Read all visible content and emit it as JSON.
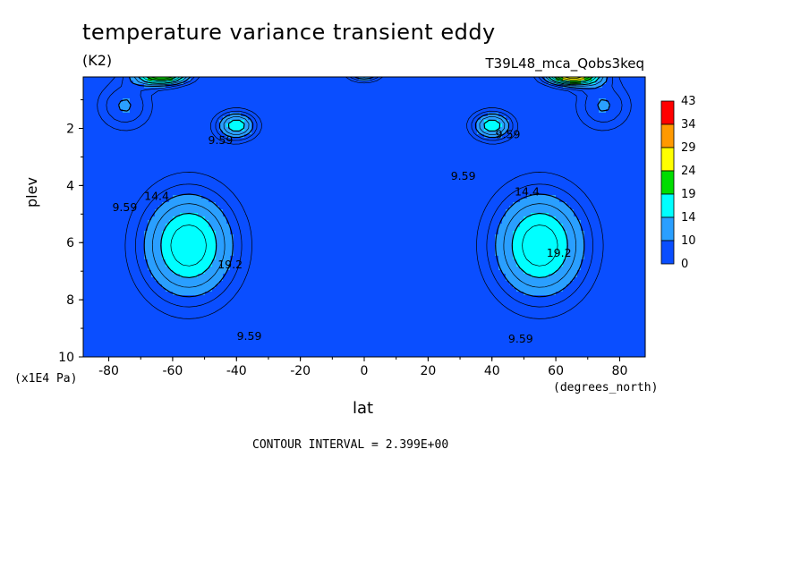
{
  "chart_data": {
    "type": "heatmap",
    "title": "temperature variance transient eddy",
    "units": "(K2)",
    "run_label": "T39L48_mca_Qobs3keq",
    "xlabel": "lat",
    "x_units": "(degrees_north)",
    "ylabel": "plev",
    "y_units": "(x1E4 Pa)",
    "footer": "CONTOUR INTERVAL = 2.399E+00",
    "xlim": [
      -88,
      88
    ],
    "ylim": [
      10,
      0.2
    ],
    "x_ticks": [
      "-80",
      "-60",
      "-40",
      "-20",
      "0",
      "20",
      "40",
      "60",
      "80"
    ],
    "x_tick_values": [
      -80,
      -60,
      -40,
      -20,
      0,
      20,
      40,
      60,
      80
    ],
    "y_ticks": [
      "2",
      "4",
      "6",
      "8",
      "10"
    ],
    "y_tick_values": [
      2,
      4,
      6,
      8,
      10
    ],
    "contour_labels": [
      {
        "text": "9.59",
        "lat": -45,
        "plev": 2.55
      },
      {
        "text": "9.59",
        "lat": -75,
        "plev": 4.9
      },
      {
        "text": "14.4",
        "lat": -65,
        "plev": 4.5
      },
      {
        "text": "19.2",
        "lat": -42,
        "plev": 6.9
      },
      {
        "text": "9.59",
        "lat": -36,
        "plev": 9.4
      },
      {
        "text": "9.59",
        "lat": 45,
        "plev": 2.35
      },
      {
        "text": "9.59",
        "lat": 31,
        "plev": 3.8
      },
      {
        "text": "14.4",
        "lat": 51,
        "plev": 4.35
      },
      {
        "text": "19.2",
        "lat": 61,
        "plev": 6.5
      },
      {
        "text": "9.59",
        "lat": 49,
        "plev": 9.5
      }
    ],
    "colorbar": {
      "labels": [
        "43",
        "34",
        "29",
        "24",
        "19",
        "14",
        "10",
        "0"
      ],
      "colors": [
        "#ff0000",
        "#ff9900",
        "#ffff00",
        "#00dd00",
        "#00ffff",
        "#2a9fff",
        "#0a4eff"
      ]
    },
    "field": {
      "background": 0,
      "features": [
        {
          "lat": -55,
          "plev": 6.1,
          "amp": 18.7,
          "slat": 17,
          "splev": 2.2
        },
        {
          "lat": 55,
          "plev": 6.1,
          "amp": 18.7,
          "slat": 17,
          "splev": 2.2
        },
        {
          "lat": -40,
          "plev": 1.9,
          "amp": 16.5,
          "slat": 7,
          "splev": 0.55
        },
        {
          "lat": 40,
          "plev": 1.9,
          "amp": 16.5,
          "slat": 7,
          "splev": 0.55
        },
        {
          "lat": -63,
          "plev": 0.15,
          "amp": 24,
          "slat": 9,
          "splev": 0.35
        },
        {
          "lat": 65,
          "plev": 0.15,
          "amp": 28,
          "slat": 9,
          "splev": 0.35
        },
        {
          "lat": 0,
          "plev": 0.15,
          "amp": 13,
          "slat": 6,
          "splev": 0.25
        },
        {
          "lat": -75,
          "plev": 1.2,
          "amp": 10,
          "slat": 10,
          "splev": 1.0
        },
        {
          "lat": 75,
          "plev": 1.2,
          "amp": 10,
          "slat": 10,
          "splev": 1.0
        }
      ],
      "contour_interval": 2.399
    }
  }
}
